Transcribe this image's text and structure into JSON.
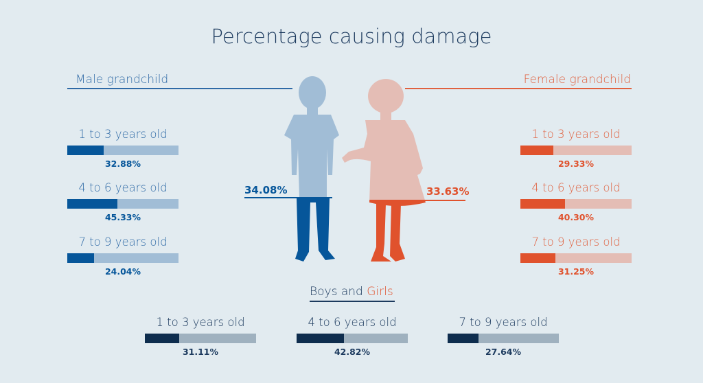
{
  "title": "Percentage causing damage",
  "male_heading": "Male grandchild",
  "female_heading": "Female grandchild",
  "bottom_heading": {
    "boys": "Boys",
    "and": "and",
    "girls": "Girls"
  },
  "colors": {
    "background": "#e2ebf0",
    "male_dark": "#06569a",
    "male_light": "#a1bdd6",
    "female_dark": "#e0522d",
    "female_light": "#e4bdb5",
    "both_dark": "#0e2d4e",
    "both_light": "#9fb1bf"
  },
  "chart_data": {
    "type": "bar",
    "title": "Percentage causing damage",
    "categories": [
      "1 to 3 years old",
      "4 to 6 years old",
      "7 to 9 years old"
    ],
    "series": [
      {
        "name": "Male grandchild",
        "values": [
          32.88,
          45.33,
          24.04
        ],
        "labels": [
          "32.88%",
          "45.33%",
          "24.04%"
        ],
        "overall": 34.08,
        "overall_label": "34.08%"
      },
      {
        "name": "Female grandchild",
        "values": [
          29.33,
          40.3,
          31.25
        ],
        "labels": [
          "29.33%",
          "40.30%",
          "31.25%"
        ],
        "overall": 33.63,
        "overall_label": "33.63%"
      },
      {
        "name": "Boys and Girls",
        "values": [
          31.11,
          42.82,
          27.64
        ],
        "labels": [
          "31.11%",
          "42.82%",
          "27.64%"
        ]
      }
    ],
    "ylim": [
      0,
      100
    ]
  }
}
